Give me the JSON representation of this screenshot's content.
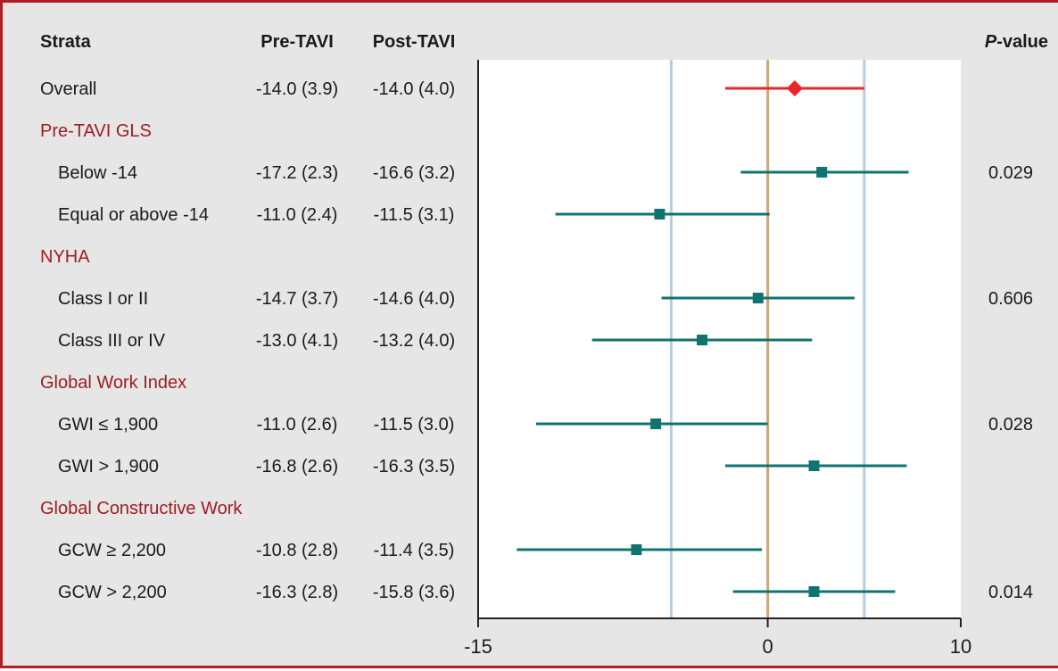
{
  "chart_data": {
    "type": "forest",
    "columns": {
      "strata": "Strata",
      "pre": "Pre-TAVI",
      "post": "Post-TAVI",
      "p_prefix": "P",
      "p_suffix": "-value"
    },
    "rows": [
      {
        "label": "Overall",
        "kind": "overall",
        "pre": "-14.0 (3.9)",
        "post": "-14.0 (4.0)",
        "est": 1.4,
        "lo": -2.2,
        "hi": 5.0
      },
      {
        "label": "Pre-TAVI GLS",
        "kind": "header"
      },
      {
        "label": "Below -14",
        "kind": "item",
        "pre": "-17.2 (2.3)",
        "post": "-16.6 (3.2)",
        "est": 2.8,
        "lo": -1.4,
        "hi": 7.3,
        "p": "0.029"
      },
      {
        "label": "Equal or above -14",
        "kind": "item",
        "pre": "-11.0 (2.4)",
        "post": "-11.5 (3.1)",
        "est": -5.6,
        "lo": -11.0,
        "hi": 0.1
      },
      {
        "label": "NYHA",
        "kind": "header"
      },
      {
        "label": "Class I or II",
        "kind": "item",
        "pre": "-14.7 (3.7)",
        "post": "-14.6 (4.0)",
        "est": -0.5,
        "lo": -5.5,
        "hi": 4.5,
        "p": "0.606"
      },
      {
        "label": "Class III or IV",
        "kind": "item",
        "pre": "-13.0 (4.1)",
        "post": "-13.2 (4.0)",
        "est": -3.4,
        "lo": -9.1,
        "hi": 2.3
      },
      {
        "label": "Global Work Index",
        "kind": "header"
      },
      {
        "label": "GWI ≤ 1,900",
        "kind": "item",
        "pre": "-11.0 (2.6)",
        "post": "-11.5 (3.0)",
        "est": -5.8,
        "lo": -12.0,
        "hi": 0.0,
        "p": "0.028"
      },
      {
        "label": "GWI > 1,900",
        "kind": "item",
        "pre": "-16.8 (2.6)",
        "post": "-16.3 (3.5)",
        "est": 2.4,
        "lo": -2.2,
        "hi": 7.2
      },
      {
        "label": "Global Constructive Work",
        "kind": "header"
      },
      {
        "label": "GCW ≥ 2,200",
        "kind": "item",
        "pre": "-10.8 (2.8)",
        "post": "-11.4 (3.5)",
        "est": -6.8,
        "lo": -13.0,
        "hi": -0.3
      },
      {
        "label": "GCW > 2,200",
        "kind": "item",
        "pre": "-16.3 (2.8)",
        "post": "-15.8 (3.6)",
        "est": 2.4,
        "lo": -1.8,
        "hi": 6.6,
        "p": "0.014"
      }
    ],
    "x_ticks": [
      -15,
      0,
      10
    ],
    "xlim": [
      -15,
      10
    ],
    "reference_lines": [
      -5,
      0,
      5
    ],
    "grid": false,
    "colors": {
      "overall": "#e8262a",
      "item": "#0f7470",
      "header_text": "#a01c22",
      "zero_line": "#d6a47a",
      "ref_lines": "#b7ccdc",
      "frame": "#b01e23",
      "background": "#e6e6e6",
      "plot_background": "#ffffff"
    }
  }
}
